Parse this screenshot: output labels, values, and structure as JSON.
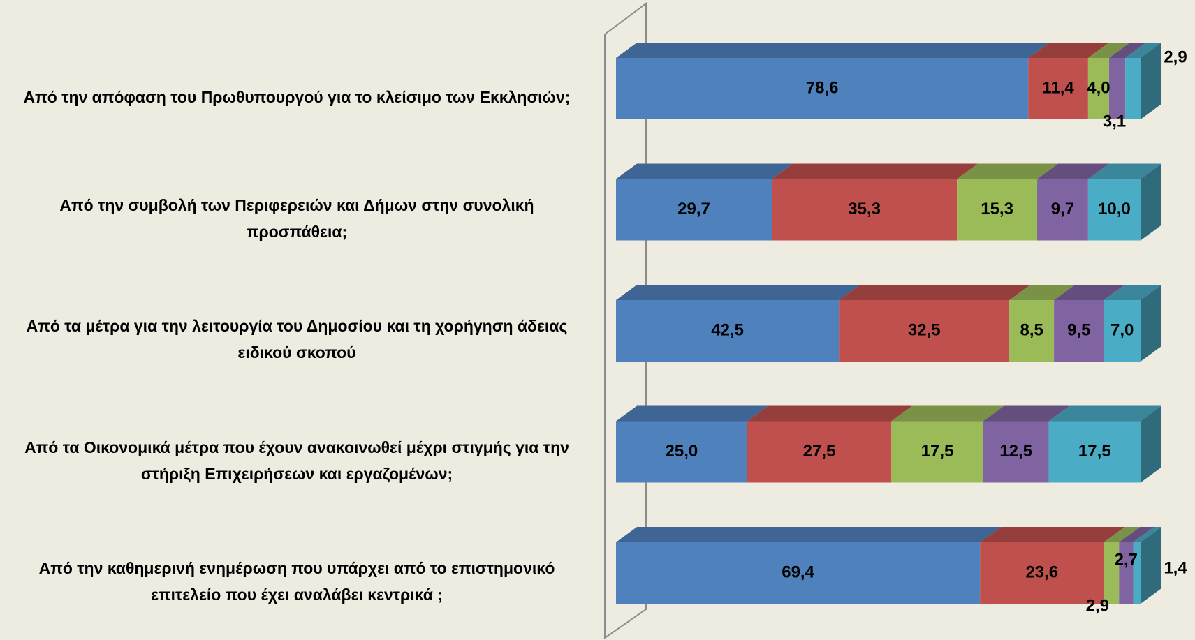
{
  "chart_data": {
    "type": "stacked-bar-3d",
    "categories": [
      "Από την απόφαση του Πρωθυπουργού για το κλείσιμο των Εκκλησιών;",
      "Από την συμβολή των Περιφερειών και Δήμων στην συνολική προσπάθεια;",
      "Από τα μέτρα για την λειτουργία του Δημοσίου και τη χορήγηση άδειας ειδικού σκοπού",
      "Από τα Οικονομικά μέτρα που έχουν ανακοινωθεί μέχρι στιγμής για την στήριξη Επιχειρήσεων και εργαζομένων;",
      "Από την καθημερινή ενημέρωση που υπάρχει από το επιστημονικό επιτελείο που έχει αναλάβει κεντρικά ;"
    ],
    "xlim": [
      0,
      100
    ],
    "series": [
      {
        "color": "#4f81bd",
        "values": [
          78.6,
          29.7,
          42.5,
          25.0,
          69.4
        ],
        "value_labels": [
          "78,6",
          "29,7",
          "42,5",
          "25,0",
          "69,4"
        ]
      },
      {
        "color": "#c0504d",
        "values": [
          11.4,
          35.3,
          32.5,
          27.5,
          23.6
        ],
        "value_labels": [
          "11,4",
          "35,3",
          "32,5",
          "27,5",
          "23,6"
        ]
      },
      {
        "color": "#9bbb59",
        "values": [
          4.0,
          15.3,
          8.5,
          17.5,
          2.9
        ],
        "value_labels": [
          "4,0",
          "15,3",
          "8,5",
          "17,5",
          "2,9"
        ]
      },
      {
        "color": "#8064a2",
        "values": [
          3.1,
          9.7,
          9.5,
          12.5,
          2.7
        ],
        "value_labels": [
          "3,1",
          "9,7",
          "9,5",
          "12,5",
          "2,7"
        ]
      },
      {
        "color": "#4bacc6",
        "values": [
          2.9,
          10.0,
          7.0,
          17.5,
          1.4
        ],
        "value_labels": [
          "2,9",
          "10,0",
          "7,0",
          "17,5",
          "1,4"
        ]
      }
    ]
  }
}
